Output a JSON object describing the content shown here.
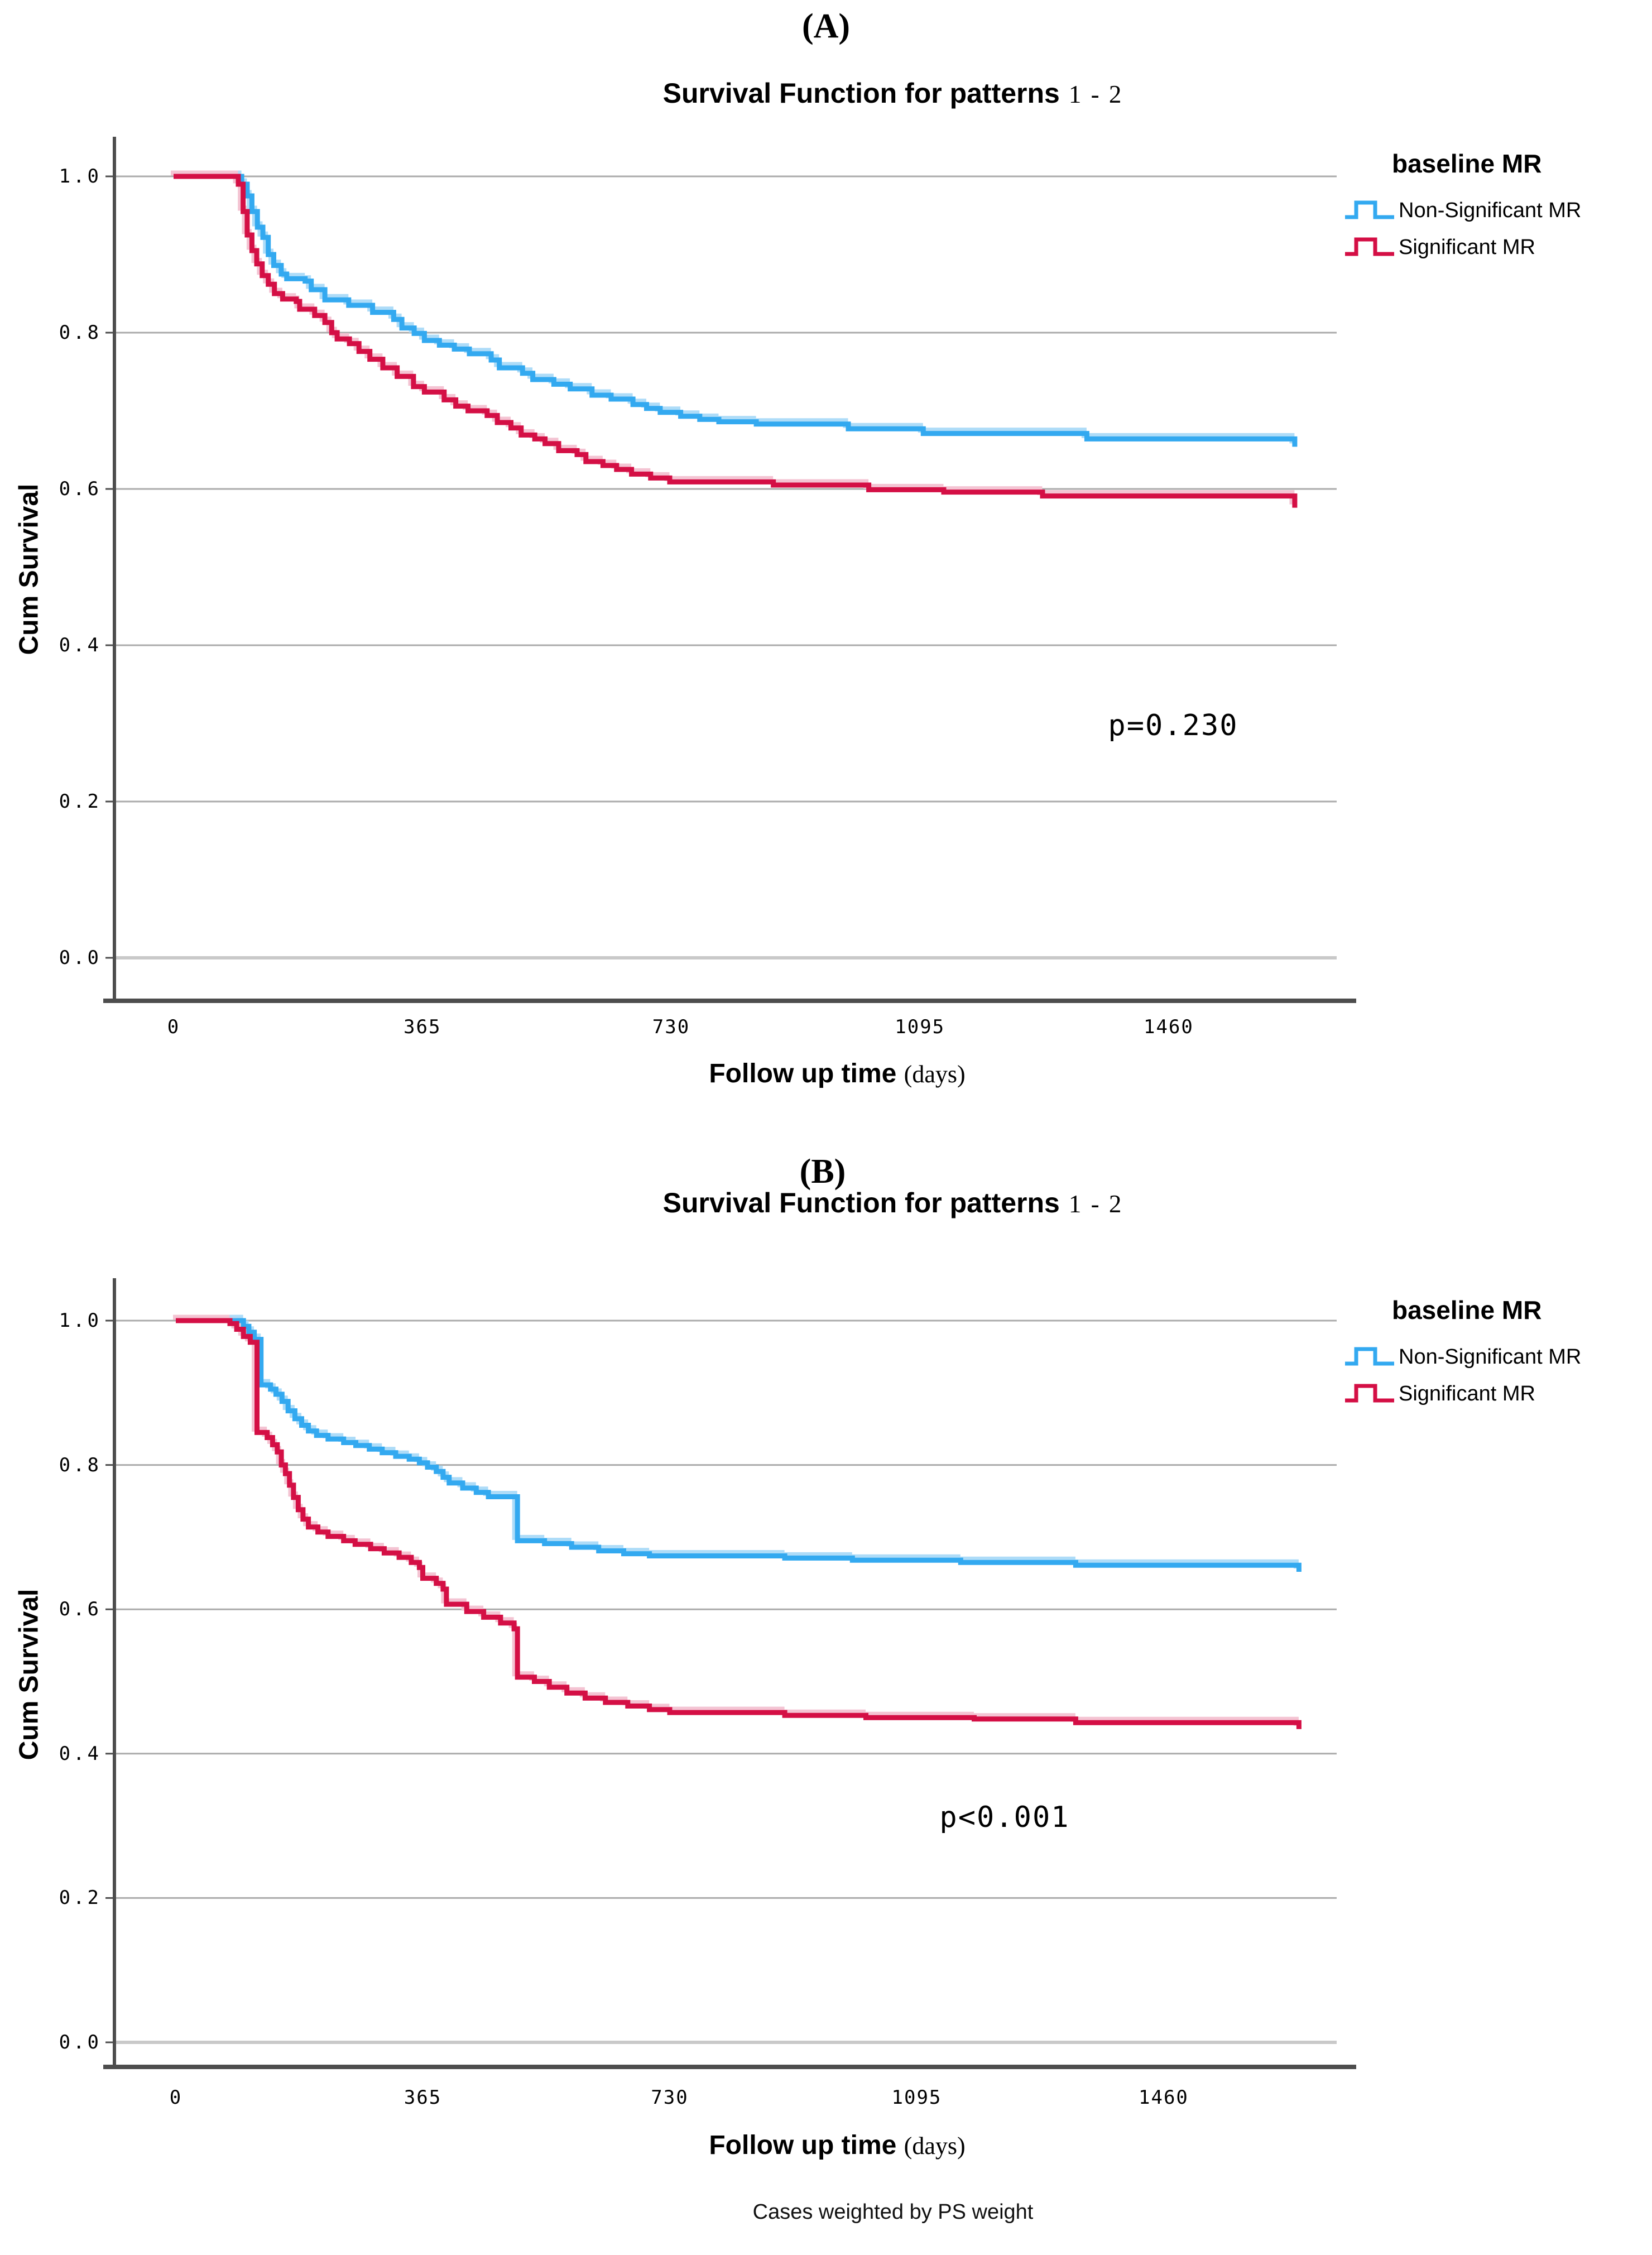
{
  "caption": "Cases weighted by PS weight",
  "chart_data": [
    {
      "type": "line",
      "step": true,
      "panel_tag": "(A)",
      "title": "Survival Function for patterns 1 - 2",
      "title_main": "Survival Function for patterns",
      "title_tail": "1 - 2",
      "xlabel": "Follow up time (days)",
      "xlabel_main": "Follow up time",
      "xlabel_tail": "(days)",
      "ylabel": "Cum Survival",
      "x_ticks": [
        0,
        365,
        730,
        1095,
        1460
      ],
      "y_ticks": [
        1.0,
        0.8,
        0.6,
        0.4,
        0.2,
        0.0
      ],
      "xlim": [
        0,
        1745
      ],
      "ylim": [
        0,
        1.05
      ],
      "grid": true,
      "legend_position": "right",
      "legend_title": "baseline MR",
      "annotation": "p=0.230",
      "colors": {
        "grid": "#ABABAB",
        "zero_grid": "#C9C9C9",
        "spine": "#4D4D4D"
      },
      "series": [
        {
          "name": "Non-Significant MR",
          "color": "#33A9F0",
          "halo": "#AEDCF8",
          "points": [
            [
              0,
              1
            ],
            [
              93,
              1
            ],
            [
              100,
              0.99
            ],
            [
              108,
              0.975
            ],
            [
              115,
              0.955
            ],
            [
              123,
              0.935
            ],
            [
              131,
              0.922
            ],
            [
              139,
              0.9
            ],
            [
              147,
              0.886
            ],
            [
              158,
              0.875
            ],
            [
              166,
              0.869
            ],
            [
              193,
              0.866
            ],
            [
              202,
              0.855
            ],
            [
              222,
              0.842
            ],
            [
              257,
              0.835
            ],
            [
              292,
              0.826
            ],
            [
              323,
              0.817
            ],
            [
              335,
              0.806
            ],
            [
              353,
              0.799
            ],
            [
              368,
              0.79
            ],
            [
              390,
              0.784
            ],
            [
              412,
              0.779
            ],
            [
              434,
              0.773
            ],
            [
              466,
              0.765
            ],
            [
              478,
              0.755
            ],
            [
              512,
              0.748
            ],
            [
              527,
              0.74
            ],
            [
              558,
              0.734
            ],
            [
              582,
              0.728
            ],
            [
              614,
              0.72
            ],
            [
              642,
              0.715
            ],
            [
              674,
              0.708
            ],
            [
              694,
              0.703
            ],
            [
              714,
              0.698
            ],
            [
              744,
              0.693
            ],
            [
              772,
              0.689
            ],
            [
              800,
              0.686
            ],
            [
              855,
              0.683
            ],
            [
              990,
              0.677
            ],
            [
              1100,
              0.671
            ],
            [
              1340,
              0.664
            ],
            [
              1645,
              0.664
            ],
            [
              1645,
              0.654
            ]
          ]
        },
        {
          "name": "Significant MR",
          "color": "#D40F45",
          "halo": "#F4C4D3",
          "points": [
            [
              0,
              1
            ],
            [
              88,
              1
            ],
            [
              95,
              0.99
            ],
            [
              102,
              0.955
            ],
            [
              108,
              0.925
            ],
            [
              115,
              0.905
            ],
            [
              122,
              0.888
            ],
            [
              130,
              0.873
            ],
            [
              139,
              0.862
            ],
            [
              148,
              0.85
            ],
            [
              160,
              0.843
            ],
            [
              180,
              0.84
            ],
            [
              185,
              0.83
            ],
            [
              207,
              0.822
            ],
            [
              222,
              0.813
            ],
            [
              232,
              0.8
            ],
            [
              240,
              0.792
            ],
            [
              258,
              0.786
            ],
            [
              272,
              0.776
            ],
            [
              288,
              0.766
            ],
            [
              307,
              0.755
            ],
            [
              328,
              0.744
            ],
            [
              352,
              0.731
            ],
            [
              368,
              0.724
            ],
            [
              397,
              0.714
            ],
            [
              414,
              0.706
            ],
            [
              432,
              0.7
            ],
            [
              460,
              0.694
            ],
            [
              475,
              0.685
            ],
            [
              495,
              0.678
            ],
            [
              510,
              0.669
            ],
            [
              530,
              0.664
            ],
            [
              545,
              0.658
            ],
            [
              565,
              0.649
            ],
            [
              592,
              0.644
            ],
            [
              605,
              0.635
            ],
            [
              630,
              0.63
            ],
            [
              650,
              0.625
            ],
            [
              672,
              0.619
            ],
            [
              700,
              0.614
            ],
            [
              728,
              0.609
            ],
            [
              880,
              0.605
            ],
            [
              1020,
              0.599
            ],
            [
              1130,
              0.596
            ],
            [
              1275,
              0.591
            ],
            [
              1645,
              0.587
            ],
            [
              1645,
              0.576
            ]
          ]
        }
      ]
    },
    {
      "type": "line",
      "step": true,
      "panel_tag": "(B)",
      "title": "Survival Function for patterns 1 - 2",
      "title_main": "Survival Function for patterns",
      "title_tail": "1 - 2",
      "xlabel": "Follow up time (days)",
      "xlabel_main": "Follow up time",
      "xlabel_tail": "(days)",
      "ylabel": "Cum Survival",
      "x_ticks": [
        0,
        365,
        730,
        1095,
        1460
      ],
      "y_ticks": [
        1.0,
        0.8,
        0.6,
        0.4,
        0.2,
        0.0
      ],
      "xlim": [
        0,
        1745
      ],
      "ylim": [
        0,
        1.05
      ],
      "grid": true,
      "legend_position": "right",
      "legend_title": "baseline MR",
      "annotation": "p<0.001",
      "colors": {
        "grid": "#ABABAB",
        "zero_grid": "#C9C9C9",
        "spine": "#4D4D4D"
      },
      "series": [
        {
          "name": "Non-Significant MR",
          "color": "#33A9F0",
          "halo": "#AEDCF8",
          "points": [
            [
              0,
              1
            ],
            [
              92,
              1
            ],
            [
              100,
              0.992
            ],
            [
              108,
              0.984
            ],
            [
              116,
              0.974
            ],
            [
              126,
              0.966
            ],
            [
              126,
              0.911
            ],
            [
              140,
              0.905
            ],
            [
              148,
              0.898
            ],
            [
              157,
              0.888
            ],
            [
              166,
              0.875
            ],
            [
              176,
              0.864
            ],
            [
              186,
              0.855
            ],
            [
              196,
              0.847
            ],
            [
              208,
              0.841
            ],
            [
              225,
              0.836
            ],
            [
              248,
              0.831
            ],
            [
              266,
              0.827
            ],
            [
              286,
              0.822
            ],
            [
              305,
              0.817
            ],
            [
              325,
              0.812
            ],
            [
              345,
              0.808
            ],
            [
              360,
              0.803
            ],
            [
              372,
              0.797
            ],
            [
              385,
              0.791
            ],
            [
              395,
              0.783
            ],
            [
              404,
              0.775
            ],
            [
              424,
              0.768
            ],
            [
              444,
              0.762
            ],
            [
              462,
              0.756
            ],
            [
              505,
              0.752
            ],
            [
              505,
              0.695
            ],
            [
              545,
              0.691
            ],
            [
              585,
              0.686
            ],
            [
              625,
              0.681
            ],
            [
              662,
              0.677
            ],
            [
              700,
              0.674
            ],
            [
              900,
              0.671
            ],
            [
              1000,
              0.668
            ],
            [
              1160,
              0.665
            ],
            [
              1330,
              0.661
            ],
            [
              1660,
              0.661
            ],
            [
              1660,
              0.652
            ]
          ]
        },
        {
          "name": "Significant MR",
          "color": "#D40F45",
          "halo": "#F4C4D3",
          "points": [
            [
              0,
              1
            ],
            [
              70,
              1
            ],
            [
              80,
              0.996
            ],
            [
              90,
              0.988
            ],
            [
              100,
              0.978
            ],
            [
              110,
              0.97
            ],
            [
              120,
              0.962
            ],
            [
              120,
              0.845
            ],
            [
              135,
              0.838
            ],
            [
              143,
              0.828
            ],
            [
              150,
              0.818
            ],
            [
              156,
              0.8
            ],
            [
              162,
              0.788
            ],
            [
              168,
              0.772
            ],
            [
              174,
              0.755
            ],
            [
              181,
              0.738
            ],
            [
              188,
              0.725
            ],
            [
              196,
              0.714
            ],
            [
              210,
              0.707
            ],
            [
              225,
              0.701
            ],
            [
              248,
              0.695
            ],
            [
              265,
              0.69
            ],
            [
              288,
              0.684
            ],
            [
              308,
              0.678
            ],
            [
              330,
              0.672
            ],
            [
              348,
              0.665
            ],
            [
              360,
              0.658
            ],
            [
              365,
              0.643
            ],
            [
              385,
              0.636
            ],
            [
              395,
              0.628
            ],
            [
              400,
              0.607
            ],
            [
              430,
              0.597
            ],
            [
              455,
              0.589
            ],
            [
              480,
              0.581
            ],
            [
              500,
              0.573
            ],
            [
              505,
              0.573
            ],
            [
              505,
              0.506
            ],
            [
              530,
              0.5
            ],
            [
              552,
              0.492
            ],
            [
              578,
              0.484
            ],
            [
              605,
              0.477
            ],
            [
              635,
              0.471
            ],
            [
              668,
              0.466
            ],
            [
              700,
              0.461
            ],
            [
              730,
              0.457
            ],
            [
              900,
              0.453
            ],
            [
              1020,
              0.45
            ],
            [
              1180,
              0.448
            ],
            [
              1330,
              0.443
            ],
            [
              1660,
              0.443
            ],
            [
              1660,
              0.434
            ]
          ]
        }
      ]
    }
  ]
}
